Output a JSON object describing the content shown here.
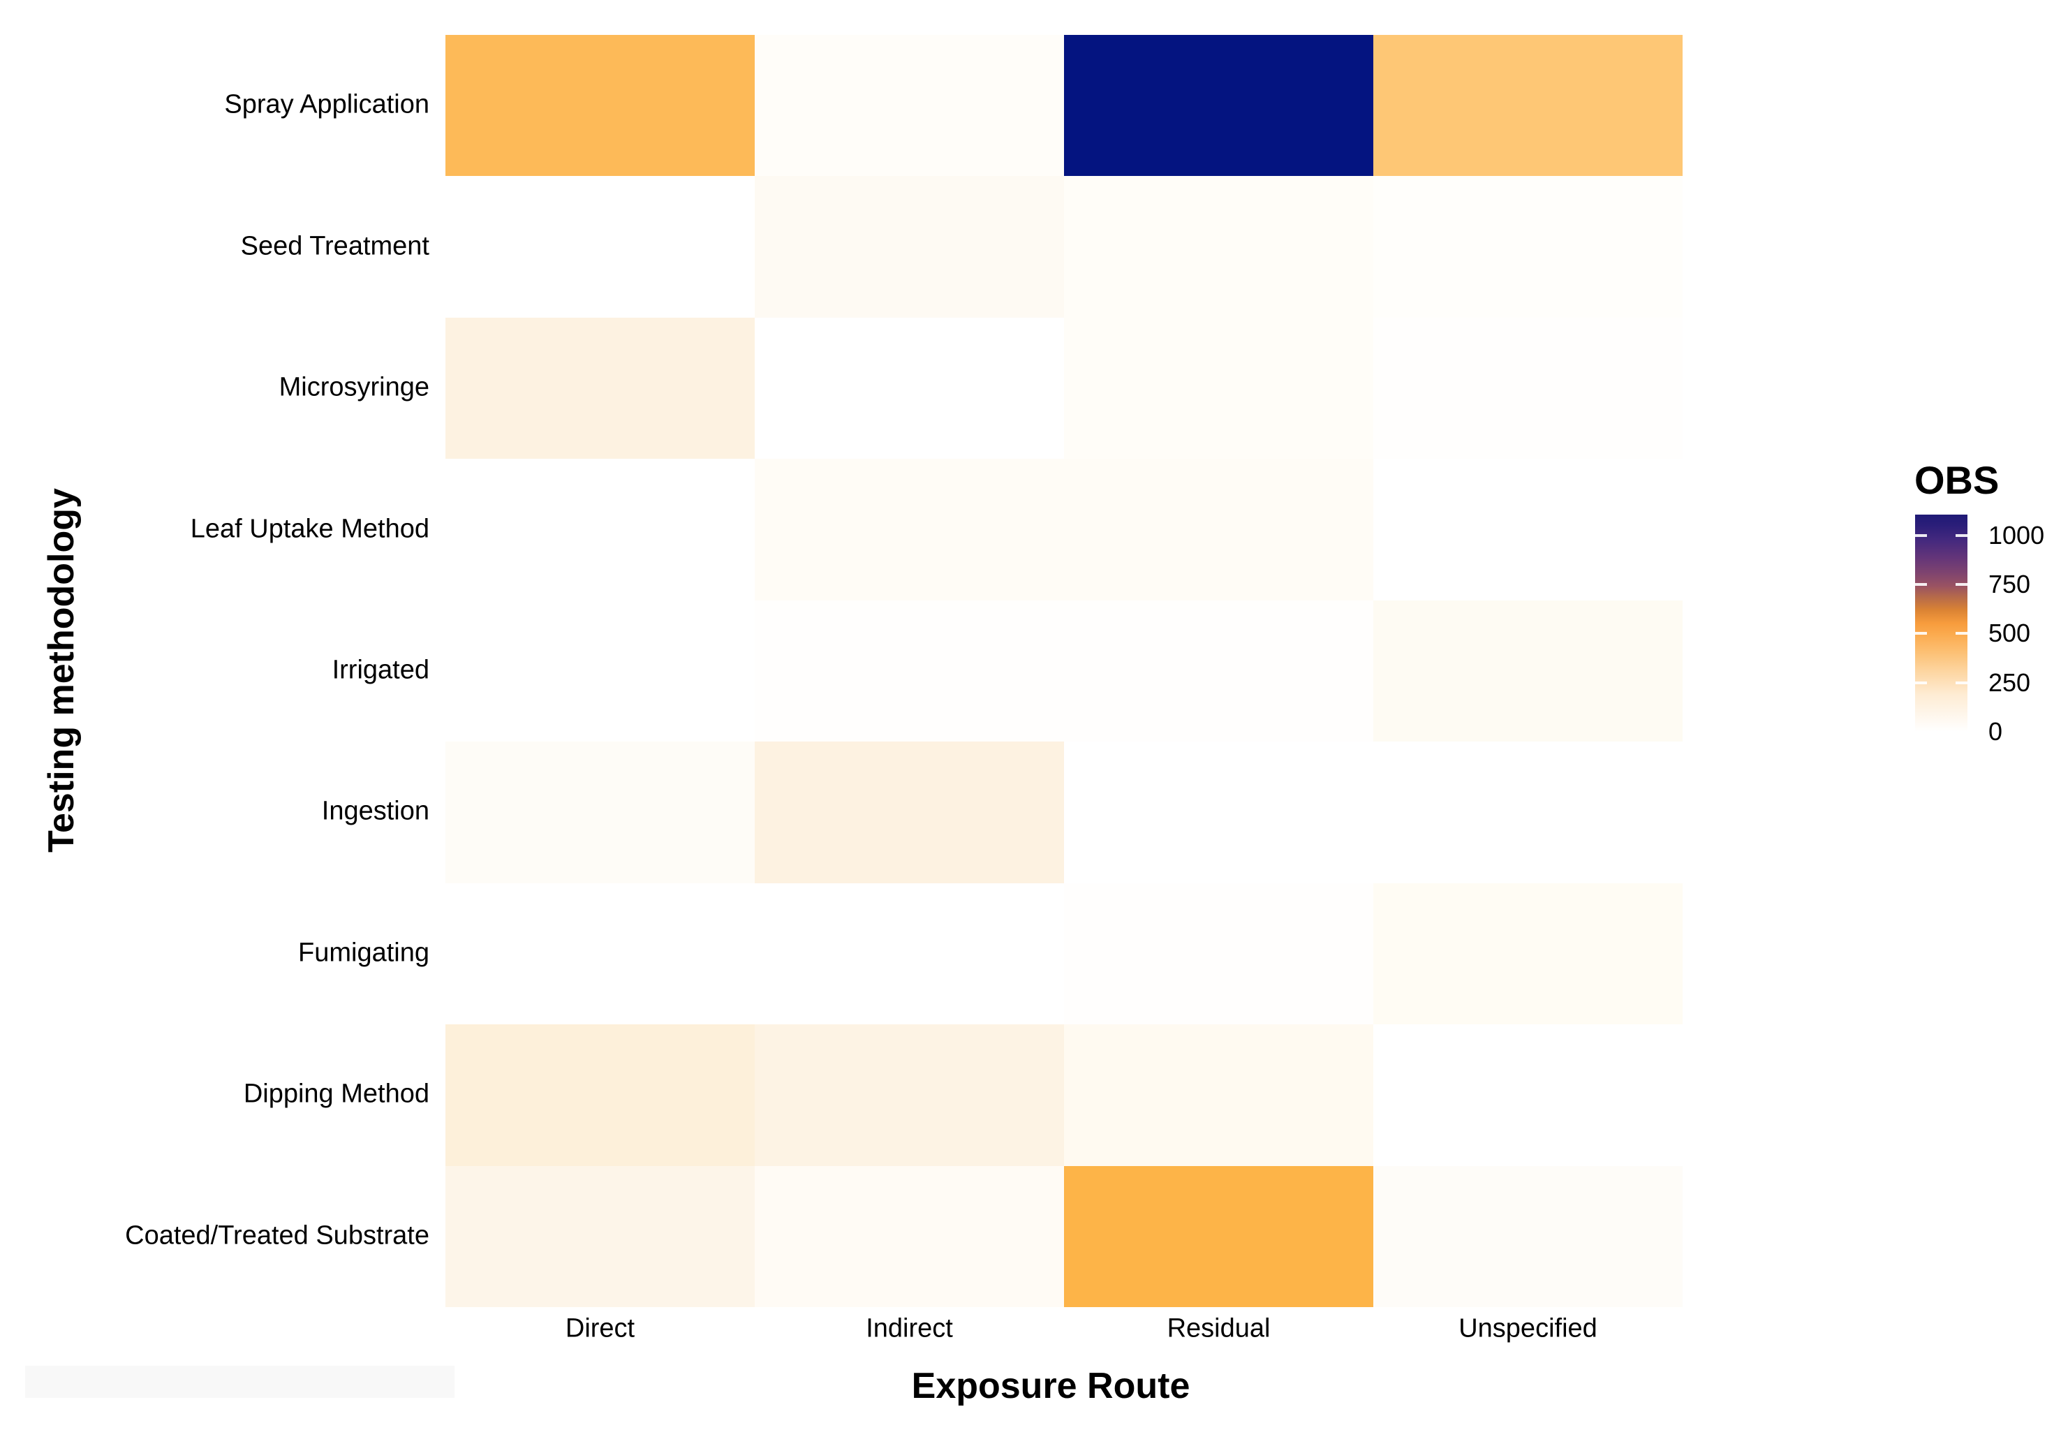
{
  "figure": {
    "background": "#ffffff",
    "redaction_strip_color": "#f8f8f8"
  },
  "chart_data": {
    "type": "heatmap",
    "xlabel": "Exposure Route",
    "ylabel": "Testing methodology",
    "columns": [
      "Direct",
      "Indirect",
      "Residual",
      "Unspecified"
    ],
    "rows": [
      "Spray Application",
      "Seed Treatment",
      "Microsyringe",
      "Leaf Uptake Method",
      "Irrigated",
      "Ingestion",
      "Fumigating",
      "Dipping Method",
      "Coated/Treated Substrate"
    ],
    "values": [
      [
        400,
        4,
        1113,
        340
      ],
      [
        0,
        15,
        6,
        2
      ],
      [
        45,
        0,
        6,
        1
      ],
      [
        0,
        10,
        10,
        0
      ],
      [
        0,
        1,
        1,
        18
      ],
      [
        10,
        45,
        0,
        0
      ],
      [
        0,
        0,
        1,
        12
      ],
      [
        55,
        42,
        18,
        0
      ],
      [
        32,
        12,
        440,
        8
      ]
    ],
    "cell_colors": [
      [
        "#fdba58",
        "#fffdf9",
        "#041480",
        "#fec775"
      ],
      [
        "#ffffff",
        "#fefaf3",
        "#fffdf8",
        "#fffefb"
      ],
      [
        "#fdf2e1",
        "#ffffff",
        "#fffdf8",
        "#fffefd"
      ],
      [
        "#ffffff",
        "#fffcf6",
        "#fffcf6",
        "#ffffff"
      ],
      [
        "#ffffff",
        "#fffefd",
        "#fffefd",
        "#fefbf3"
      ],
      [
        "#fefcf7",
        "#fdf2e1",
        "#ffffff",
        "#ffffff"
      ],
      [
        "#ffffff",
        "#ffffff",
        "#fffefd",
        "#fffcf4"
      ],
      [
        "#fdf0da",
        "#fdf3e4",
        "#fffaf1",
        "#ffffff"
      ],
      [
        "#fdf5e9",
        "#fffbf5",
        "#fdb448",
        "#fefcf8"
      ]
    ],
    "legend": {
      "title": "OBS",
      "tick_labels": [
        "1000",
        "750",
        "500",
        "250",
        "0"
      ],
      "tick_values": [
        1000,
        750,
        500,
        250,
        0
      ],
      "min_value": 0,
      "max_value": 1105,
      "gradient": [
        {
          "pos": 0,
          "color": "#1f1a76"
        },
        {
          "pos": 5,
          "color": "#2b1e79"
        },
        {
          "pos": 12,
          "color": "#45297e"
        },
        {
          "pos": 20,
          "color": "#643579"
        },
        {
          "pos": 27,
          "color": "#7f446f"
        },
        {
          "pos": 33,
          "color": "#9a5362"
        },
        {
          "pos": 38,
          "color": "#b66a4a"
        },
        {
          "pos": 44,
          "color": "#db8334"
        },
        {
          "pos": 50,
          "color": "#f79c3d"
        },
        {
          "pos": 55,
          "color": "#fbaa4e"
        },
        {
          "pos": 63,
          "color": "#fcbf72"
        },
        {
          "pos": 72,
          "color": "#fdd5a0"
        },
        {
          "pos": 83,
          "color": "#feecd4"
        },
        {
          "pos": 100,
          "color": "#ffffff"
        }
      ]
    }
  }
}
